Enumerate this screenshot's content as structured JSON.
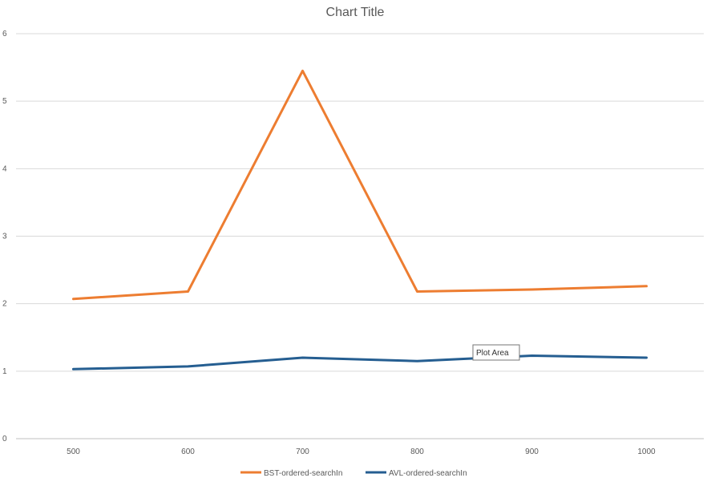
{
  "chart_data": {
    "type": "line",
    "title": "Chart Title",
    "xlabel": "",
    "ylabel": "",
    "categories": [
      "500",
      "600",
      "700",
      "800",
      "900",
      "1000"
    ],
    "ylim": [
      0,
      6
    ],
    "yticks": [
      "0",
      "1",
      "2",
      "3",
      "4",
      "5",
      "6"
    ],
    "grid": true,
    "legend": "bottom",
    "series": [
      {
        "name": "BST-ordered-searchIn",
        "color": "#ED7D31",
        "values": [
          2.07,
          2.18,
          5.45,
          2.18,
          2.21,
          2.26
        ]
      },
      {
        "name": "AVL-ordered-searchIn",
        "color": "#255E91",
        "values": [
          1.03,
          1.07,
          1.2,
          1.15,
          1.23,
          1.2
        ]
      }
    ]
  },
  "tooltip": {
    "text": "Plot Area"
  }
}
